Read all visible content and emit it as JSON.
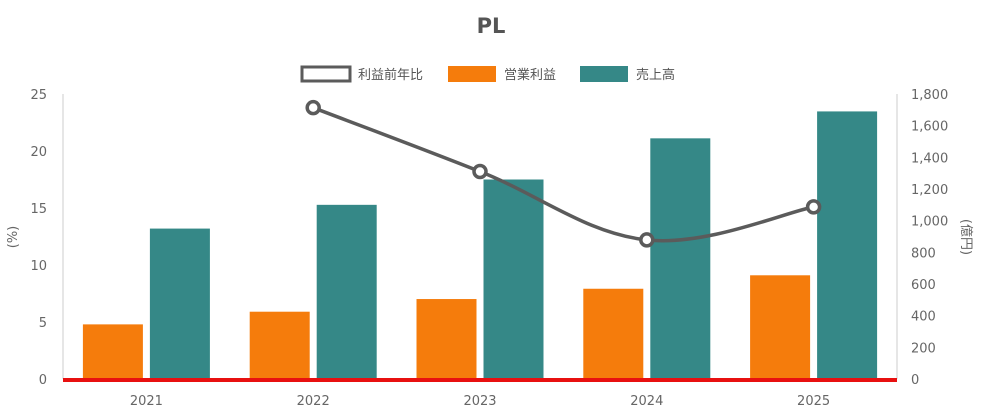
{
  "chart_data": {
    "type": "bar",
    "title": "PL",
    "categories": [
      "2021",
      "2022",
      "2023",
      "2024",
      "2025"
    ],
    "y_left": {
      "label": "(%)",
      "range": [
        0,
        25
      ],
      "ticks": [
        0,
        5,
        10,
        15,
        20,
        25
      ]
    },
    "y_right": {
      "label": "(億円)",
      "range": [
        0,
        1800
      ],
      "ticks": [
        "0",
        "200",
        "400",
        "600",
        "800",
        "1,000",
        "1,200",
        "1,400",
        "1,600",
        "1,800"
      ]
    },
    "legend": {
      "placement": "top-center"
    },
    "series": [
      {
        "name": "利益前年比",
        "type": "line",
        "axis": "left",
        "color": "#5b5b5b",
        "values": [
          null,
          23.8,
          18.2,
          12.2,
          15.1
        ]
      },
      {
        "name": "営業利益",
        "type": "bar",
        "axis": "right",
        "color": "#f57c0c",
        "values": [
          345,
          425,
          505,
          570,
          655
        ]
      },
      {
        "name": "売上高",
        "type": "bar",
        "axis": "right",
        "color": "#358887",
        "values": [
          950,
          1100,
          1260,
          1520,
          1690
        ]
      }
    ],
    "baseline_color": "#e81010",
    "grid": false
  }
}
